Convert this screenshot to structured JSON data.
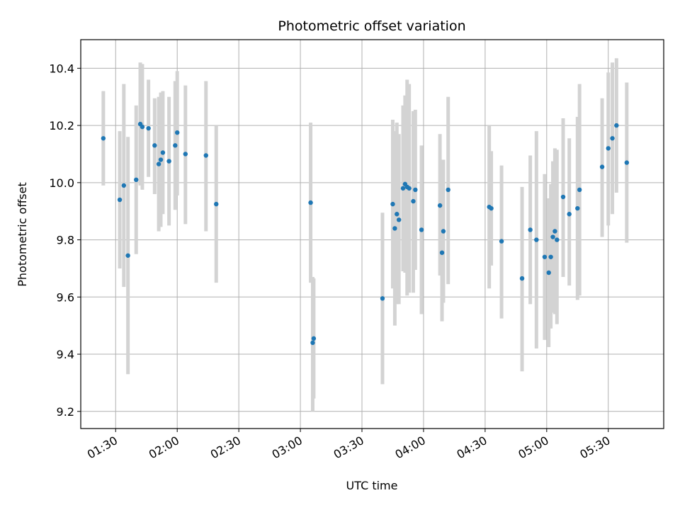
{
  "chart_data": {
    "type": "scatter",
    "title": "Photometric offset variation",
    "xlabel": "UTC time",
    "ylabel": "Photometric offset",
    "x_axis_kind": "time",
    "xlim": [
      "01:13",
      "05:57"
    ],
    "ylim": [
      9.14,
      10.5
    ],
    "x_ticks": [
      "01:30",
      "02:00",
      "02:30",
      "03:00",
      "03:30",
      "04:00",
      "04:30",
      "05:00",
      "05:30"
    ],
    "y_ticks": [
      "9.2",
      "9.4",
      "9.6",
      "9.8",
      "10.0",
      "10.2",
      "10.4"
    ],
    "y_tick_values": [
      9.2,
      9.4,
      9.6,
      9.8,
      10.0,
      10.2,
      10.4
    ],
    "grid": true,
    "colors": {
      "point": "#1f77b4",
      "errorbar": "#d3d3d3",
      "grid": "#b0b0b0",
      "axes": "#000000"
    },
    "points": [
      {
        "t": "01:24",
        "y": 10.155,
        "lo": 9.99,
        "hi": 10.32
      },
      {
        "t": "01:32",
        "y": 9.94,
        "lo": 9.7,
        "hi": 10.18
      },
      {
        "t": "01:34",
        "y": 9.99,
        "lo": 9.635,
        "hi": 10.345
      },
      {
        "t": "01:36",
        "y": 9.745,
        "lo": 9.33,
        "hi": 10.16
      },
      {
        "t": "01:40",
        "y": 10.01,
        "lo": 9.75,
        "hi": 10.27
      },
      {
        "t": "01:42",
        "y": 10.205,
        "lo": 9.99,
        "hi": 10.42
      },
      {
        "t": "01:43",
        "y": 10.195,
        "lo": 9.975,
        "hi": 10.415
      },
      {
        "t": "01:46",
        "y": 10.19,
        "lo": 10.02,
        "hi": 10.36
      },
      {
        "t": "01:49",
        "y": 10.13,
        "lo": 9.96,
        "hi": 10.295
      },
      {
        "t": "01:51",
        "y": 10.065,
        "lo": 9.83,
        "hi": 10.3
      },
      {
        "t": "01:52",
        "y": 10.08,
        "lo": 9.845,
        "hi": 10.315
      },
      {
        "t": "01:53",
        "y": 10.105,
        "lo": 9.89,
        "hi": 10.32
      },
      {
        "t": "01:56",
        "y": 10.075,
        "lo": 9.85,
        "hi": 10.3
      },
      {
        "t": "01:59",
        "y": 10.13,
        "lo": 9.905,
        "hi": 10.355
      },
      {
        "t": "02:00",
        "y": 10.175,
        "lo": 9.955,
        "hi": 10.39
      },
      {
        "t": "02:04",
        "y": 10.1,
        "lo": 9.855,
        "hi": 10.34
      },
      {
        "t": "02:14",
        "y": 10.095,
        "lo": 9.83,
        "hi": 10.355
      },
      {
        "t": "02:19",
        "y": 9.925,
        "lo": 9.65,
        "hi": 10.2
      },
      {
        "t": "03:05",
        "y": 9.93,
        "lo": 9.65,
        "hi": 10.21
      },
      {
        "t": "03:06",
        "y": 9.44,
        "lo": 9.2,
        "hi": 9.67
      },
      {
        "t": "03:06:30",
        "y": 9.455,
        "lo": 9.245,
        "hi": 9.665
      },
      {
        "t": "03:40",
        "y": 9.595,
        "lo": 9.295,
        "hi": 9.895
      },
      {
        "t": "03:45",
        "y": 9.925,
        "lo": 9.63,
        "hi": 10.22
      },
      {
        "t": "03:46",
        "y": 9.84,
        "lo": 9.5,
        "hi": 10.18
      },
      {
        "t": "03:47",
        "y": 9.89,
        "lo": 9.575,
        "hi": 10.21
      },
      {
        "t": "03:48",
        "y": 9.87,
        "lo": 9.575,
        "hi": 10.17
      },
      {
        "t": "03:50",
        "y": 9.98,
        "lo": 9.69,
        "hi": 10.27
      },
      {
        "t": "03:51",
        "y": 9.995,
        "lo": 9.685,
        "hi": 10.305
      },
      {
        "t": "03:52",
        "y": 9.985,
        "lo": 9.605,
        "hi": 10.36
      },
      {
        "t": "03:53",
        "y": 9.98,
        "lo": 9.615,
        "hi": 10.345
      },
      {
        "t": "03:55",
        "y": 9.935,
        "lo": 9.615,
        "hi": 10.25
      },
      {
        "t": "03:56",
        "y": 9.975,
        "lo": 9.695,
        "hi": 10.255
      },
      {
        "t": "03:59",
        "y": 9.835,
        "lo": 9.54,
        "hi": 10.13
      },
      {
        "t": "04:08",
        "y": 9.92,
        "lo": 9.675,
        "hi": 10.17
      },
      {
        "t": "04:09",
        "y": 9.755,
        "lo": 9.515,
        "hi": 9.995
      },
      {
        "t": "04:09:40",
        "y": 9.83,
        "lo": 9.58,
        "hi": 10.08
      },
      {
        "t": "04:12",
        "y": 9.975,
        "lo": 9.645,
        "hi": 10.3
      },
      {
        "t": "04:32",
        "y": 9.915,
        "lo": 9.63,
        "hi": 10.2
      },
      {
        "t": "04:33",
        "y": 9.91,
        "lo": 9.71,
        "hi": 10.11
      },
      {
        "t": "04:38",
        "y": 9.795,
        "lo": 9.525,
        "hi": 10.06
      },
      {
        "t": "04:48",
        "y": 9.665,
        "lo": 9.34,
        "hi": 9.985
      },
      {
        "t": "04:52",
        "y": 9.835,
        "lo": 9.575,
        "hi": 10.095
      },
      {
        "t": "04:55",
        "y": 9.8,
        "lo": 9.42,
        "hi": 10.18
      },
      {
        "t": "04:59",
        "y": 9.74,
        "lo": 9.45,
        "hi": 10.03
      },
      {
        "t": "05:01",
        "y": 9.685,
        "lo": 9.425,
        "hi": 9.945
      },
      {
        "t": "05:02",
        "y": 9.74,
        "lo": 9.49,
        "hi": 9.995
      },
      {
        "t": "05:03",
        "y": 9.81,
        "lo": 9.545,
        "hi": 10.075
      },
      {
        "t": "05:04",
        "y": 9.83,
        "lo": 9.54,
        "hi": 10.12
      },
      {
        "t": "05:05",
        "y": 9.8,
        "lo": 9.505,
        "hi": 10.115
      },
      {
        "t": "05:08",
        "y": 9.95,
        "lo": 9.67,
        "hi": 10.225
      },
      {
        "t": "05:11",
        "y": 9.89,
        "lo": 9.64,
        "hi": 10.155
      },
      {
        "t": "05:15",
        "y": 9.91,
        "lo": 9.59,
        "hi": 10.23
      },
      {
        "t": "05:16",
        "y": 9.975,
        "lo": 9.605,
        "hi": 10.345
      },
      {
        "t": "05:27",
        "y": 10.055,
        "lo": 9.81,
        "hi": 10.295
      },
      {
        "t": "05:30",
        "y": 10.12,
        "lo": 9.85,
        "hi": 10.385
      },
      {
        "t": "05:32",
        "y": 10.155,
        "lo": 9.89,
        "hi": 10.42
      },
      {
        "t": "05:34",
        "y": 10.2,
        "lo": 9.965,
        "hi": 10.435
      },
      {
        "t": "05:39",
        "y": 10.07,
        "lo": 9.79,
        "hi": 10.35
      }
    ]
  }
}
